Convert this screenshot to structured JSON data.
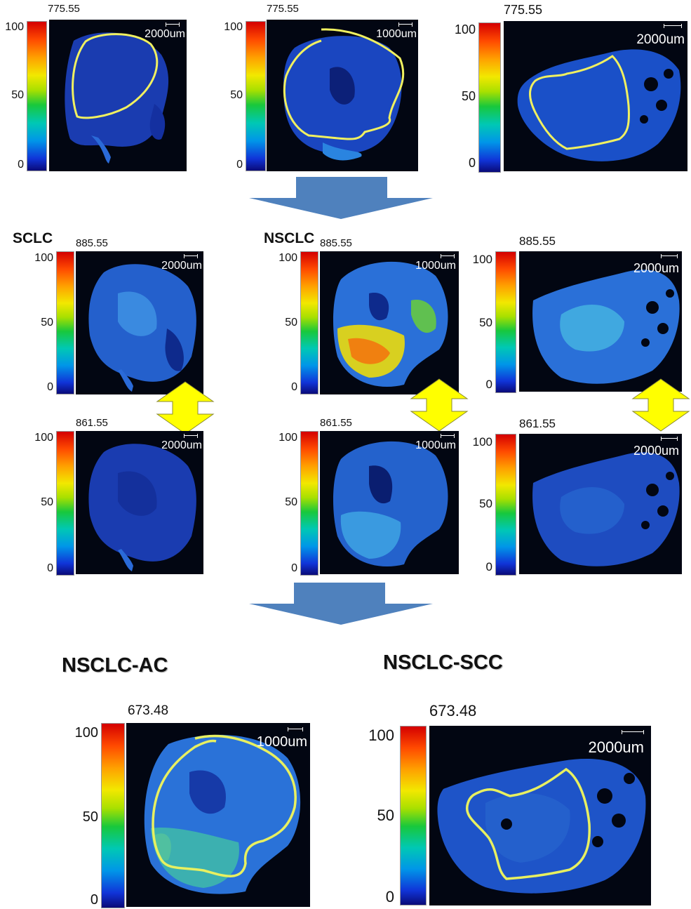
{
  "colorbar": {
    "max_label": "100",
    "mid_label": "50",
    "min_label": "0"
  },
  "row1": [
    {
      "mz": "775.55",
      "scale": "2000um"
    },
    {
      "mz": "775.55",
      "scale": "1000um"
    },
    {
      "mz": "775.55",
      "scale": "2000um"
    }
  ],
  "groups": {
    "sclc": "SCLC",
    "nsclc": "NSCLC"
  },
  "row2": [
    {
      "mz": "885.55",
      "scale": "2000um"
    },
    {
      "mz": "885.55",
      "scale": "1000um"
    },
    {
      "mz": "885.55",
      "scale": "2000um"
    }
  ],
  "row3": [
    {
      "mz": "861.55",
      "scale": "2000um"
    },
    {
      "mz": "861.55",
      "scale": "1000um"
    },
    {
      "mz": "861.55",
      "scale": "2000um"
    }
  ],
  "subtypes": {
    "ac": "NSCLC-AC",
    "scc": "NSCLC-SCC"
  },
  "row4": [
    {
      "mz": "673.48",
      "scale": "1000um"
    },
    {
      "mz": "673.48",
      "scale": "2000um"
    }
  ],
  "colors": {
    "arrow_blue": "#4f81bd",
    "arrow_yellow": "#ffff00",
    "roi_outline": "#f0f060"
  }
}
